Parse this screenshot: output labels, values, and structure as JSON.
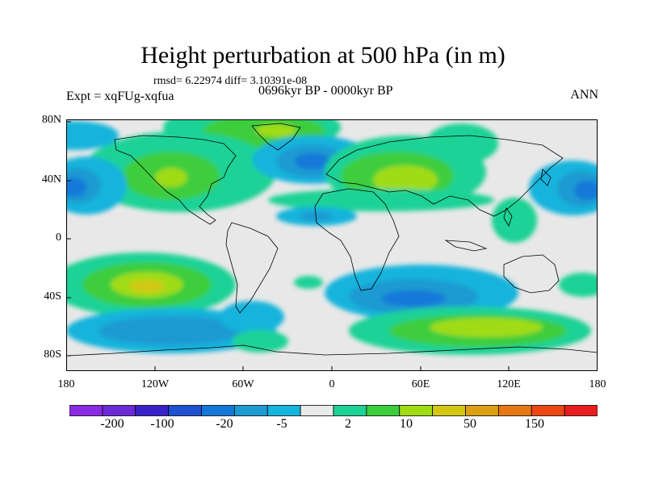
{
  "title": "Height perturbation at 500 hPa (in m)",
  "stats": "rmsd= 6.22974 diff= 3.10391e-08",
  "expt": "Expt = xqFUg-xqfua",
  "period": "0696kyr BP - 0000kyr BP",
  "season": "ANN",
  "lat_labels": [
    "80N",
    "40N",
    "0",
    "40S",
    "80S"
  ],
  "lon_labels": [
    "180",
    "120W",
    "60W",
    "0",
    "60E",
    "120E",
    "180"
  ],
  "colorbar": {
    "colors": [
      "#8a2be2",
      "#6a2ad6",
      "#3b22c8",
      "#1e50d2",
      "#1478d8",
      "#1e9ad2",
      "#14b4dc",
      "#eaeaea",
      "#1ed296",
      "#3ccd3c",
      "#a0dc14",
      "#d2c814",
      "#dca014",
      "#e67814",
      "#ec4614",
      "#e81e1e"
    ],
    "labels": [
      "-200",
      "-100",
      "-20",
      "-5",
      "2",
      "10",
      "50",
      "150"
    ]
  }
}
